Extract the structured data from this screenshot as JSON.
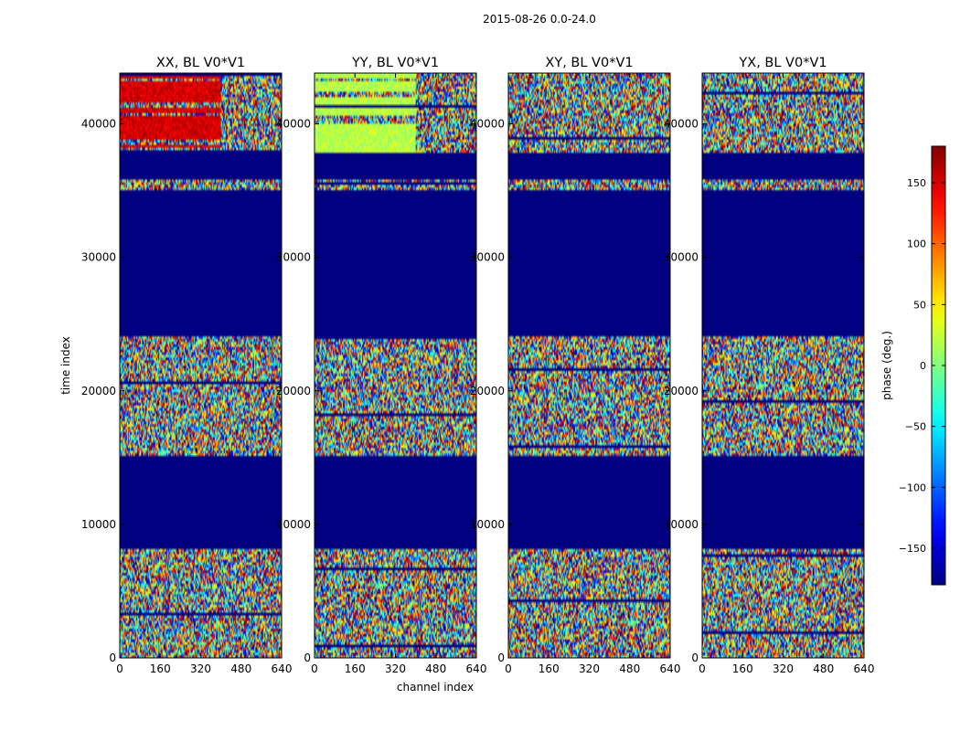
{
  "figure": {
    "suptitle": "2015-08-26 0.0-24.0",
    "xlabel": "channel index",
    "ylabel": "time index",
    "colorbar_label": "phase (deg.)",
    "colorbar_ticks": [
      150,
      100,
      50,
      0,
      -50,
      -100,
      -150
    ],
    "colorbar_tick_labels": [
      "150",
      "100",
      "50",
      "0",
      "−50",
      "−100",
      "−150"
    ],
    "colorbar_range": [
      -180,
      180
    ],
    "colormap": "jet"
  },
  "chart_data": {
    "type": "heatmap",
    "title": "2015-08-26 0.0-24.0",
    "xlabel": "channel index",
    "ylabel": "time index",
    "xlim": [
      0,
      640
    ],
    "ylim": [
      0,
      43800
    ],
    "x_ticks": [
      0,
      160,
      320,
      480,
      640
    ],
    "x_tick_labels": [
      "0",
      "160",
      "320",
      "480",
      "640"
    ],
    "y_ticks": [
      0,
      10000,
      20000,
      30000,
      40000
    ],
    "y_tick_labels": [
      "0",
      "10000",
      "20000",
      "30000",
      "40000"
    ],
    "value_range": [
      -180,
      180
    ],
    "value_label": "phase (deg.)",
    "panels": [
      {
        "title": "XX, BL V0*V1",
        "pol": "XX"
      },
      {
        "title": "YY, BL V0*V1",
        "pol": "YY"
      },
      {
        "title": "XY, BL V0*V1",
        "pol": "XY"
      },
      {
        "title": "YX, BL V0*V1",
        "pol": "YX"
      }
    ],
    "flagged_time_ranges": [
      [
        8100,
        15200
      ],
      [
        24000,
        35000
      ],
      [
        35900,
        37800
      ]
    ],
    "flagged_value": -180
  }
}
